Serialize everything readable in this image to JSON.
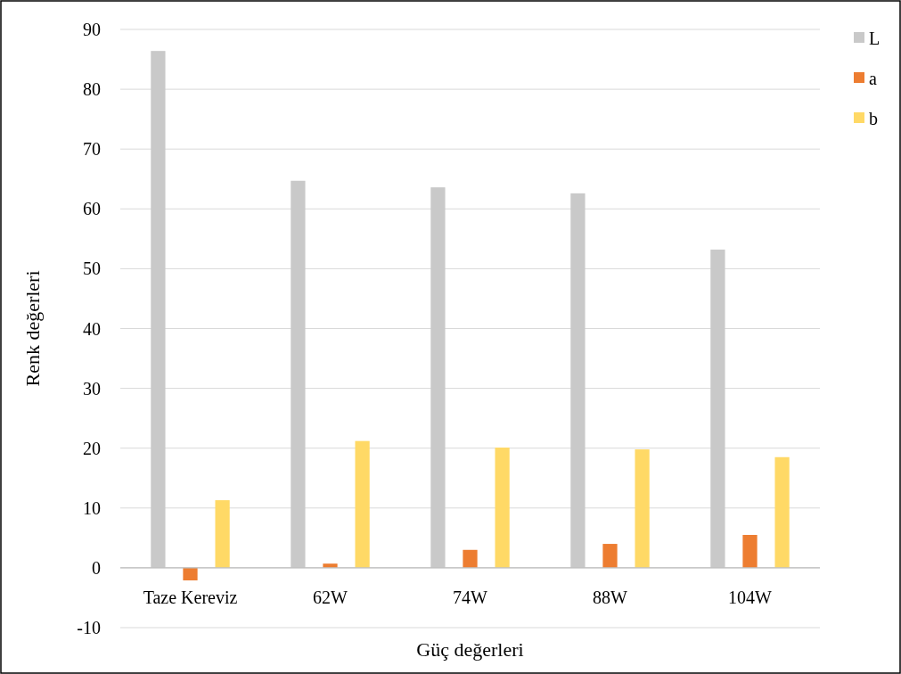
{
  "chart_data": {
    "type": "bar",
    "xlabel": "Güç değerleri",
    "ylabel": "Renk değerleri",
    "categories": [
      "Taze Kereviz",
      "62W",
      "74W",
      "88W",
      "104W"
    ],
    "series": [
      {
        "name": "L",
        "color": "#c9c9c9",
        "values": [
          86.4,
          64.7,
          63.6,
          62.6,
          53.2
        ]
      },
      {
        "name": "a",
        "color": "#ed7d31",
        "values": [
          -2.1,
          0.7,
          3.0,
          4.0,
          5.5
        ]
      },
      {
        "name": "b",
        "color": "#ffd966",
        "values": [
          11.3,
          21.2,
          20.1,
          19.8,
          18.5
        ]
      }
    ],
    "ylim": [
      -10,
      90
    ],
    "yticks": [
      -10,
      0,
      10,
      20,
      30,
      40,
      50,
      60,
      70,
      80,
      90
    ],
    "grid": "y",
    "legend": "top right"
  }
}
